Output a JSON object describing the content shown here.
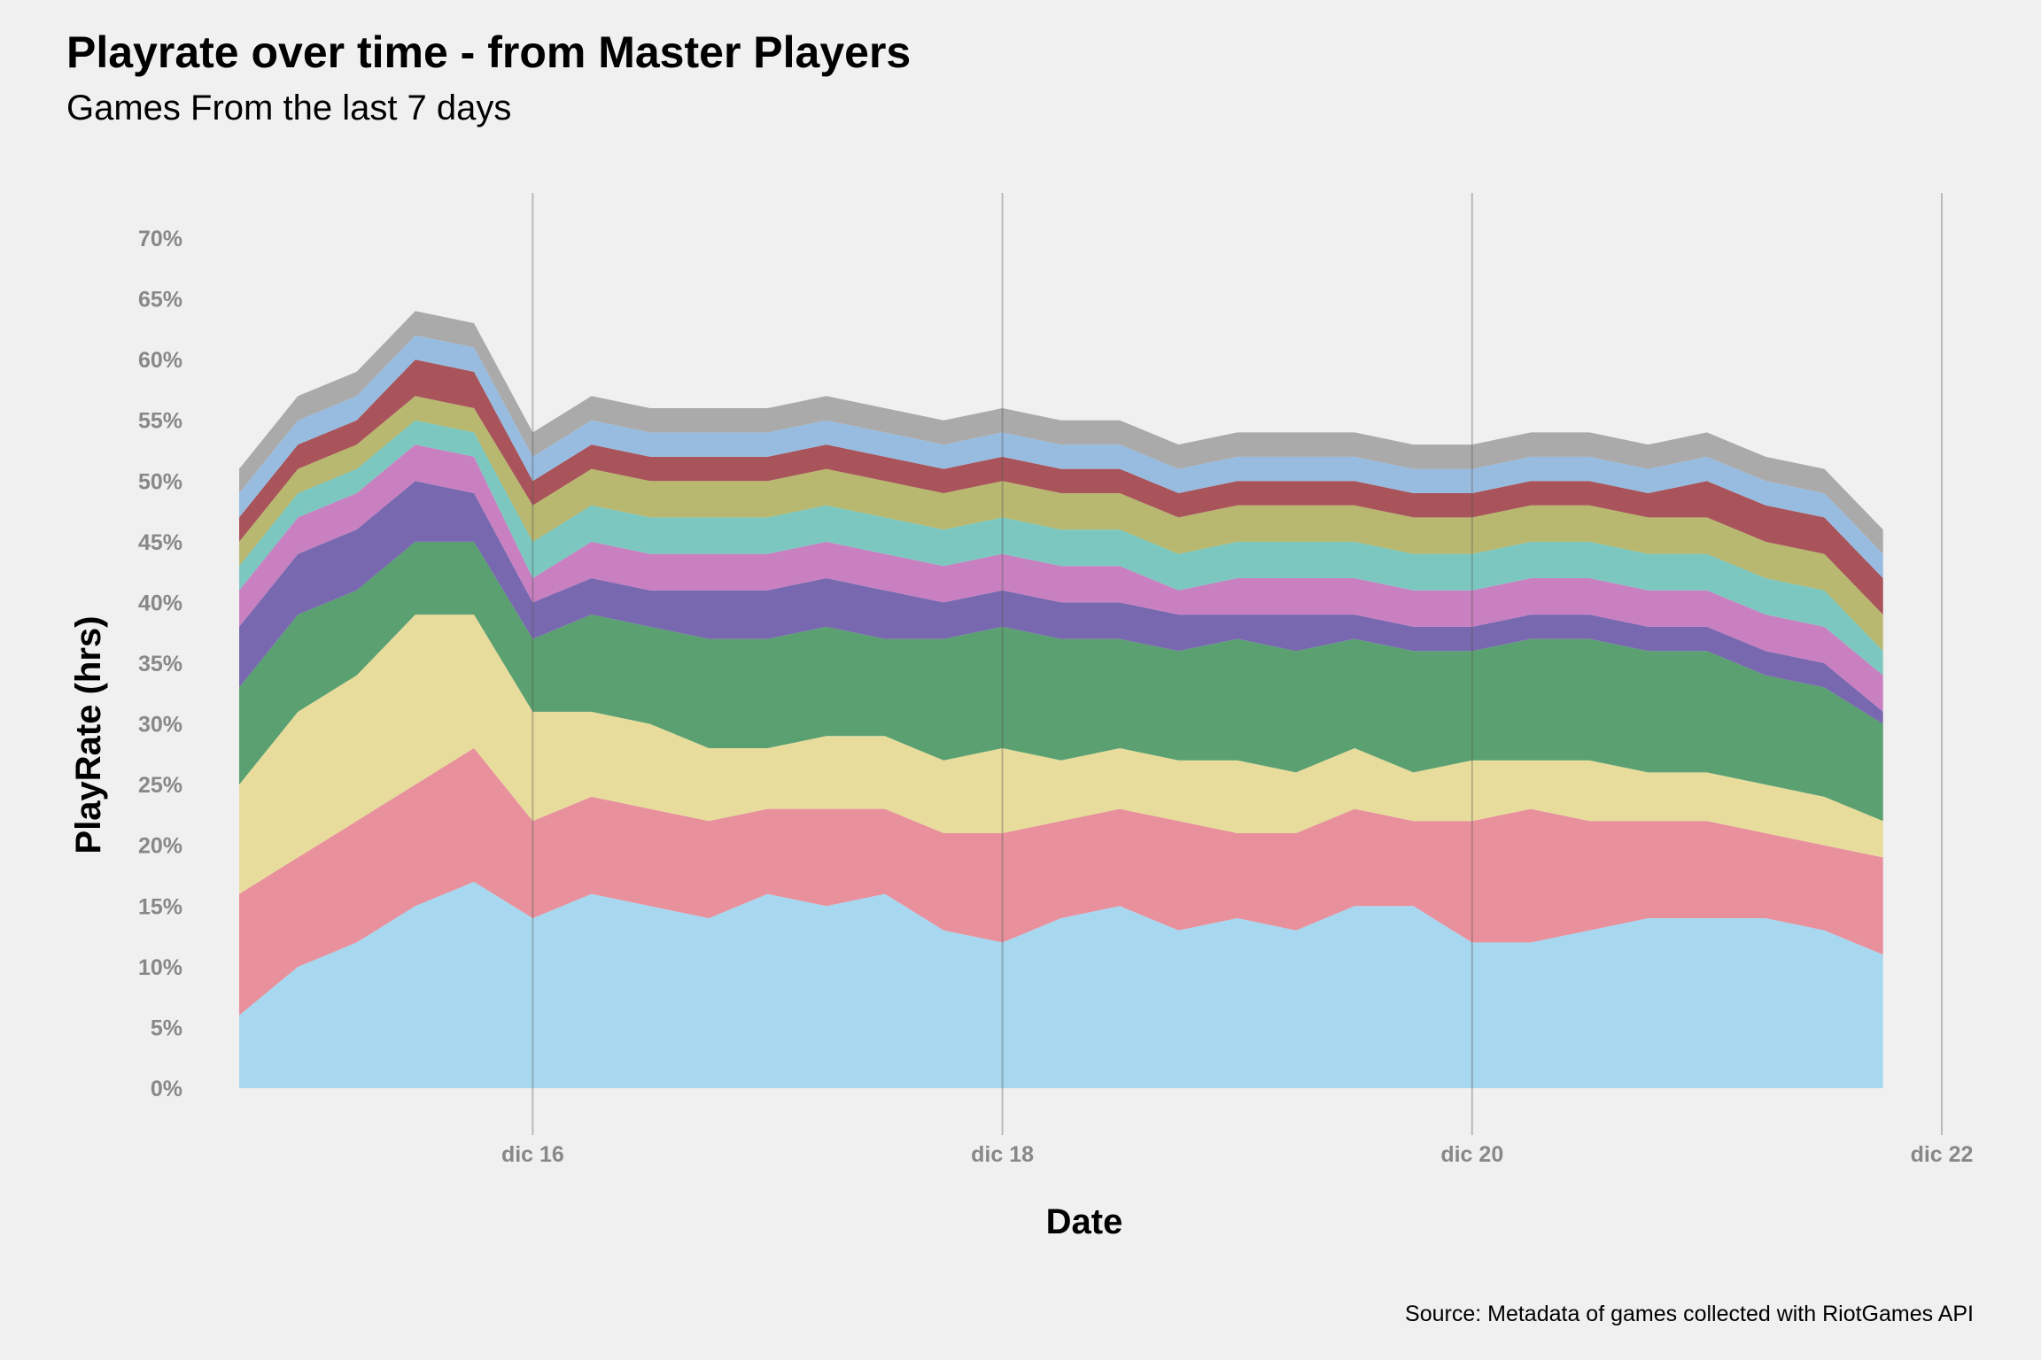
{
  "title": "Playrate over time - from Master Players",
  "subtitle": "Games From the last 7 days",
  "caption": "Source: Metadata of games collected with RiotGames API",
  "chart_data": {
    "type": "area",
    "stacked": true,
    "title": "Playrate over time - from Master Players",
    "subtitle": "Games From the last 7 days",
    "xlabel": "Date",
    "ylabel": "PlayRate (hrs)",
    "y_unit": "%",
    "ylim": [
      0,
      70
    ],
    "yticks": [
      0,
      5,
      10,
      15,
      20,
      25,
      30,
      35,
      40,
      45,
      50,
      55,
      60,
      65,
      70
    ],
    "ytick_labels": [
      "0%",
      "5%",
      "10%",
      "15%",
      "20%",
      "25%",
      "30%",
      "35%",
      "40%",
      "45%",
      "50%",
      "55%",
      "60%",
      "65%",
      "70%"
    ],
    "xlim": [
      "2024-12-14T18:00",
      "2024-12-22T00:00"
    ],
    "xticks": [
      "2024-12-16",
      "2024-12-18",
      "2024-12-20",
      "2024-12-22"
    ],
    "xtick_labels": [
      "dic 16",
      "dic 18",
      "dic 20",
      "dic 22"
    ],
    "grid": "vertical-major",
    "legend": "none",
    "x": [
      "2024-12-14T18:00",
      "2024-12-15T00:00",
      "2024-12-15T06:00",
      "2024-12-15T12:00",
      "2024-12-15T18:00",
      "2024-12-16T00:00",
      "2024-12-16T06:00",
      "2024-12-16T12:00",
      "2024-12-16T18:00",
      "2024-12-17T00:00",
      "2024-12-17T06:00",
      "2024-12-17T12:00",
      "2024-12-17T18:00",
      "2024-12-18T00:00",
      "2024-12-18T06:00",
      "2024-12-18T12:00",
      "2024-12-18T18:00",
      "2024-12-19T00:00",
      "2024-12-19T06:00",
      "2024-12-19T12:00",
      "2024-12-19T18:00",
      "2024-12-20T00:00",
      "2024-12-20T06:00",
      "2024-12-20T12:00",
      "2024-12-20T18:00",
      "2024-12-21T00:00",
      "2024-12-21T06:00",
      "2024-12-21T12:00",
      "2024-12-21T18:00"
    ],
    "series": [
      {
        "color": "#a8d8f0",
        "values": [
          6,
          10,
          12,
          15,
          17,
          14,
          16,
          15,
          14,
          16,
          15,
          16,
          13,
          12,
          14,
          15,
          13,
          14,
          13,
          15,
          15,
          12,
          12,
          13,
          14,
          14,
          14,
          13,
          11
        ]
      },
      {
        "color": "#e8909c",
        "values": [
          10,
          9,
          10,
          10,
          11,
          8,
          8,
          8,
          8,
          7,
          8,
          7,
          8,
          9,
          8,
          8,
          9,
          7,
          8,
          8,
          7,
          10,
          11,
          9,
          8,
          8,
          7,
          7,
          8
        ]
      },
      {
        "color": "#e8dc9c",
        "values": [
          9,
          12,
          12,
          14,
          11,
          9,
          7,
          7,
          6,
          5,
          6,
          6,
          6,
          7,
          5,
          5,
          5,
          6,
          5,
          5,
          4,
          5,
          4,
          5,
          4,
          4,
          4,
          4,
          3
        ]
      },
      {
        "color": "#5aa070",
        "values": [
          8,
          8,
          7,
          6,
          6,
          6,
          8,
          8,
          9,
          9,
          9,
          8,
          10,
          10,
          10,
          9,
          9,
          10,
          10,
          9,
          10,
          9,
          10,
          10,
          10,
          10,
          9,
          9,
          8
        ]
      },
      {
        "color": "#7868b0",
        "values": [
          5,
          5,
          5,
          5,
          4,
          3,
          3,
          3,
          4,
          4,
          4,
          4,
          3,
          3,
          3,
          3,
          3,
          2,
          3,
          2,
          2,
          2,
          2,
          2,
          2,
          2,
          2,
          2,
          1
        ]
      },
      {
        "color": "#c880c0",
        "values": [
          3,
          3,
          3,
          3,
          3,
          2,
          3,
          3,
          3,
          3,
          3,
          3,
          3,
          3,
          3,
          3,
          2,
          3,
          3,
          3,
          3,
          3,
          3,
          3,
          3,
          3,
          3,
          3,
          3
        ]
      },
      {
        "color": "#7cc8c0",
        "values": [
          2,
          2,
          2,
          2,
          2,
          3,
          3,
          3,
          3,
          3,
          3,
          3,
          3,
          3,
          3,
          3,
          3,
          3,
          3,
          3,
          3,
          3,
          3,
          3,
          3,
          3,
          3,
          3,
          2
        ]
      },
      {
        "color": "#b8b870",
        "values": [
          2,
          2,
          2,
          2,
          2,
          3,
          3,
          3,
          3,
          3,
          3,
          3,
          3,
          3,
          3,
          3,
          3,
          3,
          3,
          3,
          3,
          3,
          3,
          3,
          3,
          3,
          3,
          3,
          3
        ]
      },
      {
        "color": "#a8545a",
        "values": [
          2,
          2,
          2,
          3,
          3,
          2,
          2,
          2,
          2,
          2,
          2,
          2,
          2,
          2,
          2,
          2,
          2,
          2,
          2,
          2,
          2,
          2,
          2,
          2,
          2,
          3,
          3,
          3,
          3
        ]
      },
      {
        "color": "#98bce0",
        "values": [
          2,
          2,
          2,
          2,
          2,
          2,
          2,
          2,
          2,
          2,
          2,
          2,
          2,
          2,
          2,
          2,
          2,
          2,
          2,
          2,
          2,
          2,
          2,
          2,
          2,
          2,
          2,
          2,
          2
        ]
      },
      {
        "color": "#aaaaaa",
        "values": [
          2,
          2,
          2,
          2,
          2,
          2,
          2,
          2,
          2,
          2,
          2,
          2,
          2,
          2,
          2,
          2,
          2,
          2,
          2,
          2,
          2,
          2,
          2,
          2,
          2,
          2,
          2,
          2,
          2
        ]
      }
    ]
  }
}
